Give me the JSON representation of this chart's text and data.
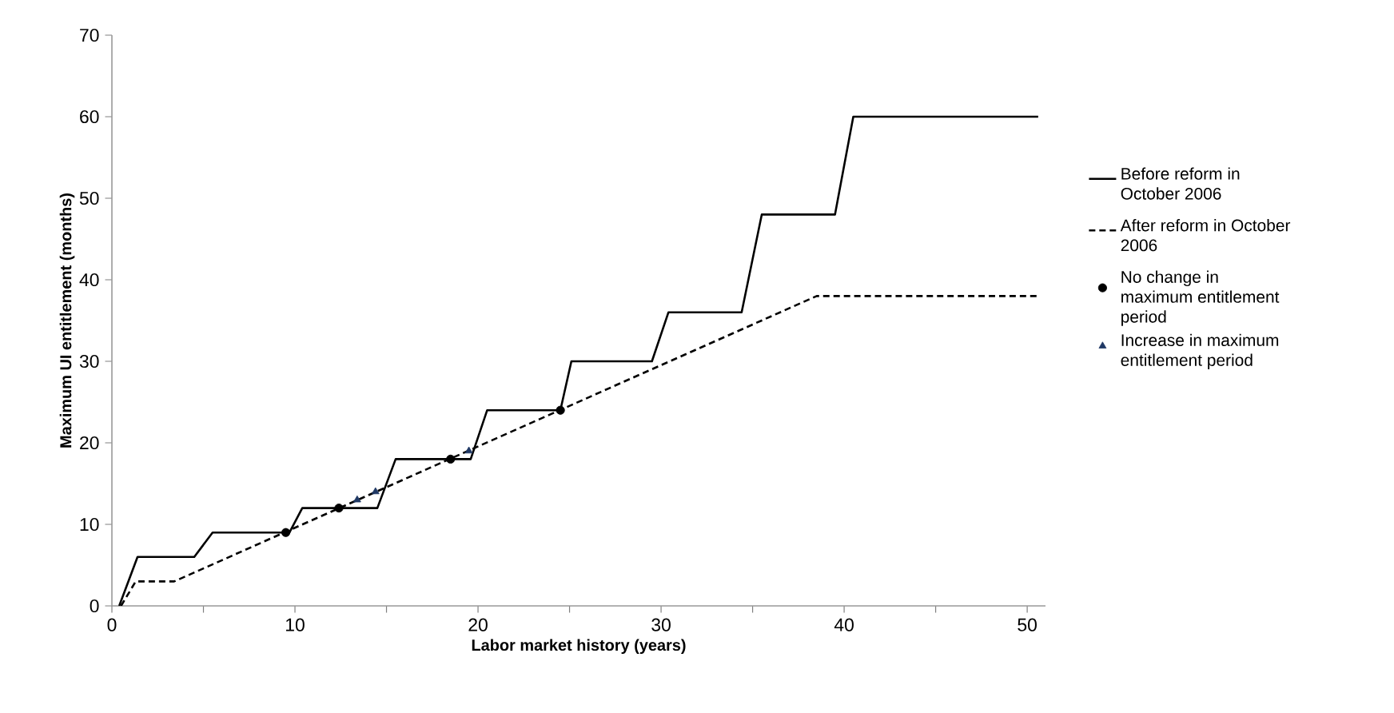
{
  "chart_data": {
    "type": "line",
    "xlabel": "Labor market history (years)",
    "ylabel": "Maximum UI entitlement (months)",
    "xlim": [
      0,
      51
    ],
    "ylim": [
      0,
      70
    ],
    "xticks": [
      0,
      {
        "value": 5,
        "label": null
      },
      10,
      {
        "value": 15,
        "label": null
      },
      20,
      {
        "value": 25,
        "label": null
      },
      30,
      {
        "value": 35,
        "label": null
      },
      40,
      {
        "value": 45,
        "label": null
      },
      50
    ],
    "yticks": [
      0,
      10,
      20,
      30,
      40,
      50,
      60,
      70
    ],
    "grid": false,
    "legend": "right",
    "series": [
      {
        "name": "Before reform in October 2006",
        "color": "#000000",
        "line_style": "solid",
        "marker": "none",
        "x": [
          0.4,
          1.4,
          4.5,
          5.5,
          9.7,
          10.4,
          14.5,
          15.5,
          19.6,
          20.5,
          24.5,
          25.1,
          29.5,
          30.4,
          34.4,
          35.5,
          39.5,
          40.5,
          50.6
        ],
        "values": [
          0,
          6,
          6,
          9,
          9,
          12,
          12,
          18,
          18,
          24,
          24,
          30,
          30,
          36,
          36,
          48,
          48,
          60,
          60
        ]
      },
      {
        "name": "After reform in October 2006",
        "color": "#000000",
        "line_style": "dashed",
        "marker": "none",
        "x": [
          0.5,
          1.3,
          3.4,
          38.5,
          50.6
        ],
        "values": [
          0,
          3,
          3,
          38,
          38
        ]
      },
      {
        "name": "No change in maximum entitlement period",
        "type": "scatter",
        "color": "#000000",
        "marker": "circle",
        "x": [
          9.5,
          12.4,
          18.5,
          24.5
        ],
        "values": [
          9,
          12,
          18,
          24
        ]
      },
      {
        "name": "Increase in maximum entitlement period",
        "type": "scatter",
        "color": "#1f3864",
        "marker": "triangle",
        "x": [
          13.4,
          14.4,
          19.5
        ],
        "values": [
          13,
          14,
          19
        ]
      }
    ]
  }
}
